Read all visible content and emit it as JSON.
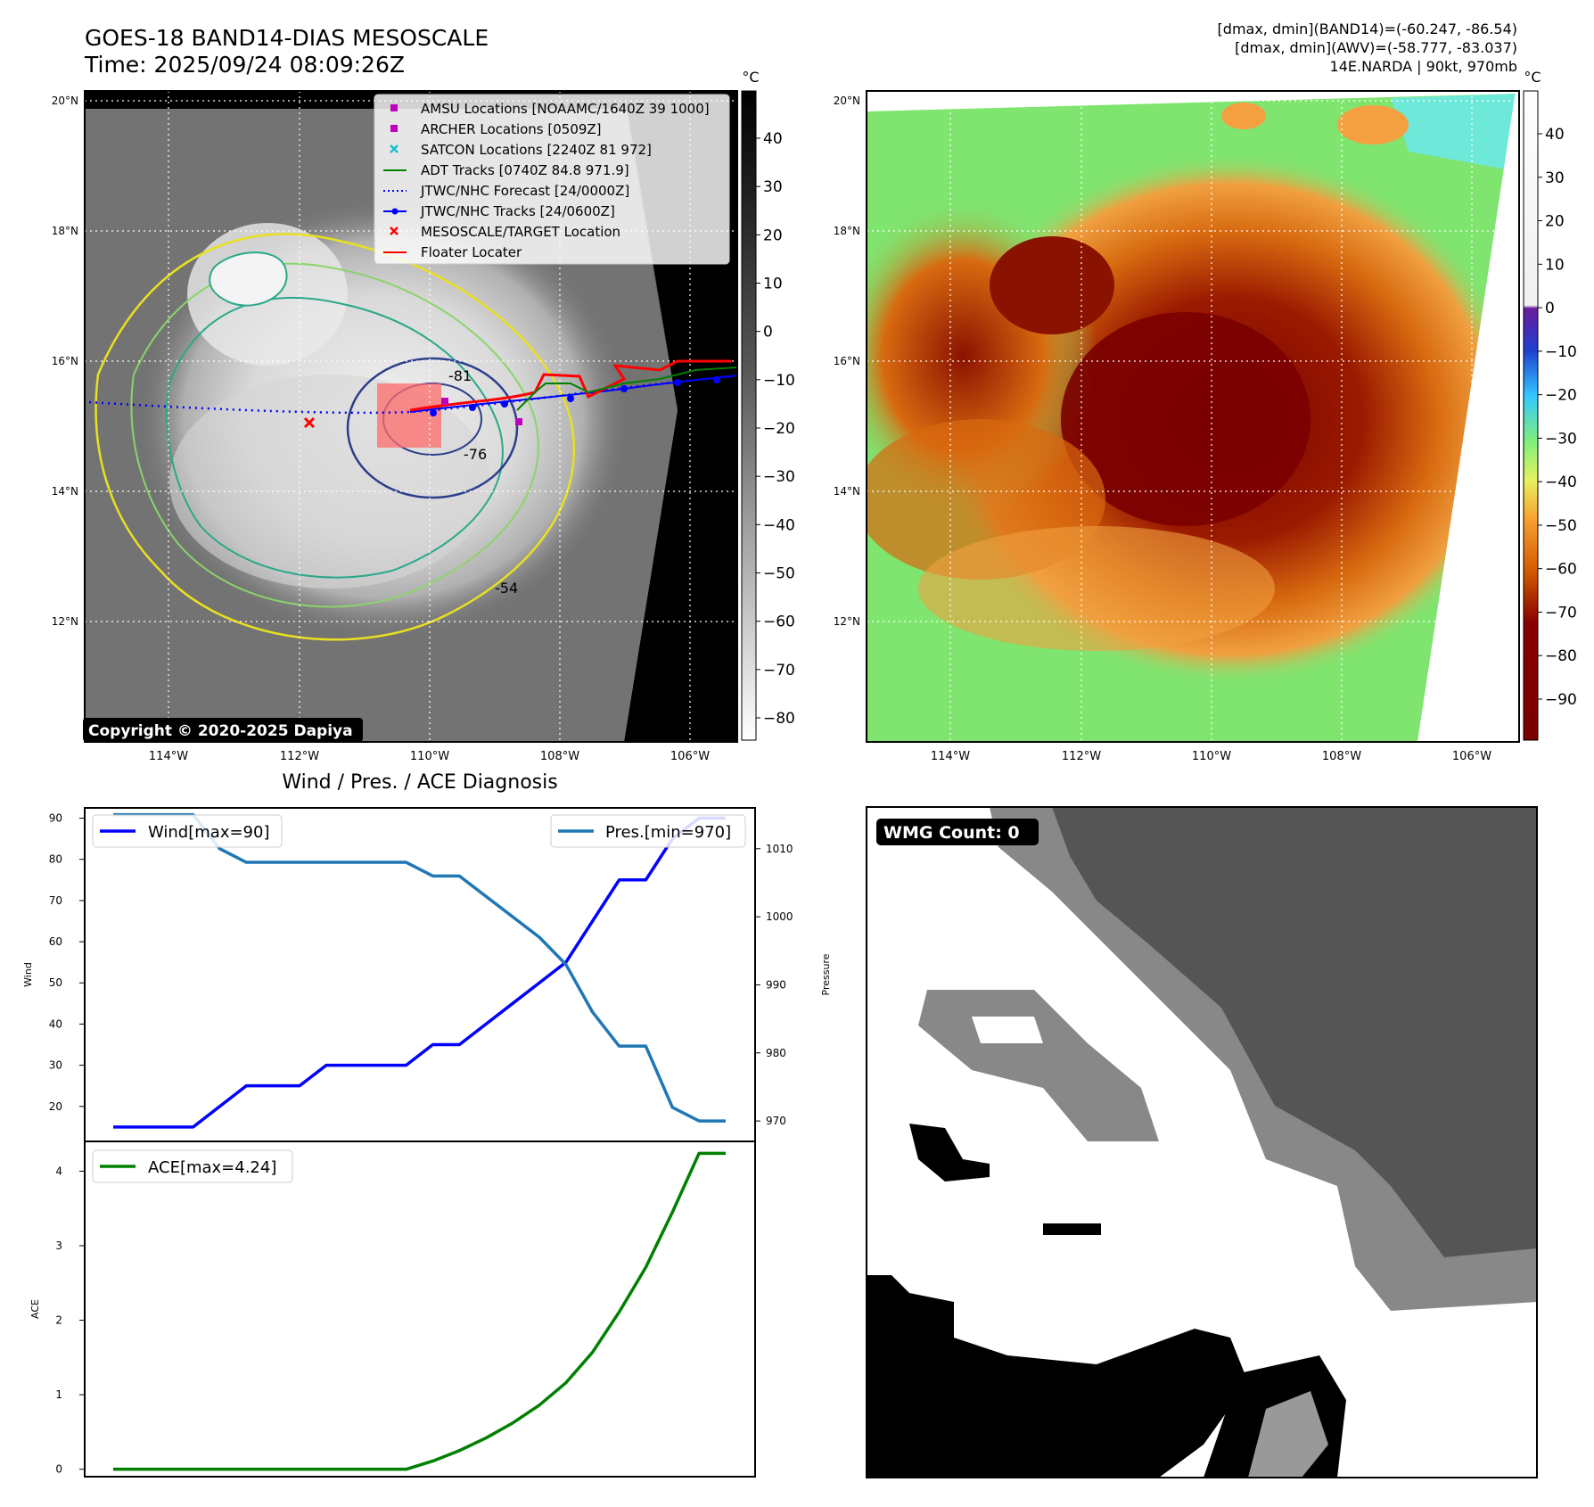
{
  "header": {
    "title_line1": "GOES-18 BAND14-DIAS MESOSCALE",
    "title_line2": "Time: 2025/09/24 08:09:26Z",
    "info_line1": "[dmax, dmin](BAND14)=(-60.247, -86.54)",
    "info_line2": "[dmax, dmin](AWV)=(-58.777, -83.037)",
    "info_line3": "14E.NARDA | 90kt, 970mb"
  },
  "map_axes": {
    "lat_labels": [
      "20°N",
      "18°N",
      "16°N",
      "14°N",
      "12°N"
    ],
    "lon_labels": [
      "114°W",
      "112°W",
      "110°W",
      "108°W",
      "106°W"
    ]
  },
  "colorbar_ir": {
    "unit": "°C",
    "ticks": [
      "40",
      "30",
      "20",
      "10",
      "0",
      "−10",
      "−20",
      "−30",
      "−40",
      "−50",
      "−60",
      "−70",
      "−80"
    ]
  },
  "colorbar_color": {
    "unit": "°C",
    "ticks": [
      "40",
      "30",
      "20",
      "10",
      "0",
      "−10",
      "−20",
      "−30",
      "−40",
      "−50",
      "−60",
      "−70",
      "−80",
      "−90"
    ]
  },
  "legend": {
    "items": [
      {
        "label": "AMSU Locations [NOAAMC/1640Z 39 1000]",
        "color": "#bf00bf",
        "marker": "square"
      },
      {
        "label": "ARCHER Locations [0509Z]",
        "color": "#bf00bf",
        "marker": "square"
      },
      {
        "label": "SATCON Locations [2240Z 81 972]",
        "color": "#17becf",
        "marker": "x"
      },
      {
        "label": "ADT Tracks [0740Z 84.8 971.9]",
        "color": "#008000",
        "marker": "line"
      },
      {
        "label": "JTWC/NHC Forecast [24/0000Z]",
        "color": "#0000ff",
        "marker": "dotted"
      },
      {
        "label": "JTWC/NHC Tracks [24/0600Z]",
        "color": "#0000ff",
        "marker": "line-dot"
      },
      {
        "label": "MESOSCALE/TARGET Location",
        "color": "#ff0000",
        "marker": "x"
      },
      {
        "label": "Floater Locater",
        "color": "#ff0000",
        "marker": "line"
      }
    ]
  },
  "contour_labels": [
    "-81",
    "-76",
    "-54"
  ],
  "copyright": "Copyright © 2020-2025 Dapiya",
  "wmg_badge": "WMG Count: 0",
  "diagnosis_title": "Wind / Pres. / ACE Diagnosis",
  "chart_data": [
    {
      "type": "line",
      "title": "Wind / Pres. / ACE Diagnosis",
      "xlabel": "",
      "ylabel": "Wind",
      "y2label": "Pressure",
      "ylim": [
        11.5,
        92.5
      ],
      "y2lim": [
        967,
        1016
      ],
      "yticks": [
        20,
        30,
        40,
        50,
        60,
        70,
        80,
        90
      ],
      "y2ticks": [
        970,
        980,
        990,
        1000,
        1010
      ],
      "x": [
        0,
        1,
        2,
        3,
        4,
        5,
        6,
        7,
        8,
        9,
        10,
        11,
        12,
        13,
        14,
        15,
        16,
        17,
        18,
        19,
        20,
        21,
        22,
        23
      ],
      "series": [
        {
          "name": "Wind[max=90]",
          "axis": "left",
          "color": "#0000ff",
          "values": [
            15,
            15,
            15,
            15,
            20,
            25,
            25,
            25,
            30,
            30,
            30,
            30,
            35,
            35,
            40,
            45,
            50,
            55,
            65,
            75,
            75,
            85,
            90,
            90
          ]
        },
        {
          "name": "Pres.[min=970]",
          "axis": "right",
          "color": "#1f77b4",
          "values": [
            1015,
            1015,
            1015,
            1015,
            1010,
            1008,
            1008,
            1008,
            1008,
            1008,
            1008,
            1008,
            1006,
            1006,
            1003,
            1000,
            997,
            993,
            986,
            981,
            981,
            972,
            970,
            970
          ]
        }
      ],
      "legend": [
        "top-left",
        "top-right"
      ]
    },
    {
      "type": "line",
      "ylabel": "ACE",
      "ylim": [
        -0.1,
        4.4
      ],
      "yticks": [
        0,
        1,
        2,
        3,
        4
      ],
      "x": [
        0,
        1,
        2,
        3,
        4,
        5,
        6,
        7,
        8,
        9,
        10,
        11,
        12,
        13,
        14,
        15,
        16,
        17,
        18,
        19,
        20,
        21,
        22,
        23
      ],
      "series": [
        {
          "name": "ACE[max=4.24]",
          "color": "#008000",
          "values": [
            0,
            0,
            0,
            0,
            0,
            0,
            0,
            0,
            0,
            0,
            0,
            0.0,
            0.11,
            0.25,
            0.42,
            0.62,
            0.86,
            1.16,
            1.57,
            2.11,
            2.71,
            3.45,
            4.24,
            4.24
          ]
        }
      ],
      "legend": "top-left"
    }
  ]
}
